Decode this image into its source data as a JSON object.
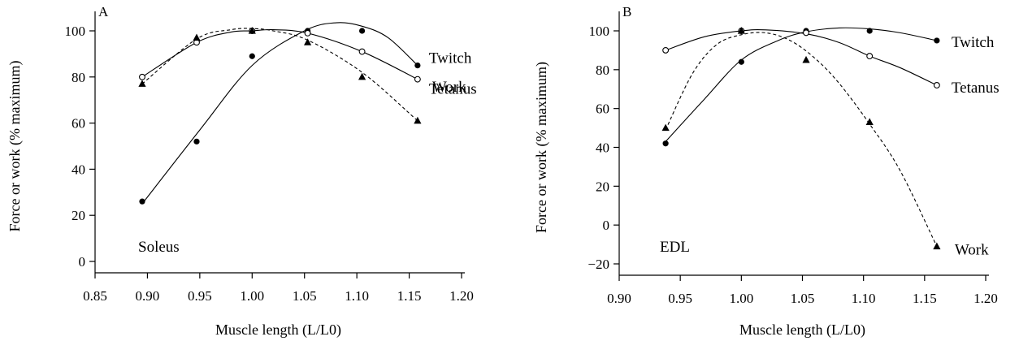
{
  "chart_data": [
    {
      "type": "line",
      "panel_label": "A",
      "muscle_label": "Soleus",
      "xlabel": "Muscle length (L/L0)",
      "ylabel": "Force or work (% maximum)",
      "xlim": [
        0.85,
        1.2
      ],
      "ylim": [
        0,
        100
      ],
      "xticks": [
        "0.85",
        "0.90",
        "0.95",
        "1.00",
        "1.05",
        "1.10",
        "1.15",
        "1.20"
      ],
      "yticks": [
        "0",
        "20",
        "40",
        "60",
        "80",
        "100"
      ],
      "grid": false,
      "series": [
        {
          "name": "Twitch",
          "marker": "filled-circle",
          "line": "solid",
          "x": [
            0.895,
            0.947,
            1.0,
            1.053,
            1.105,
            1.158
          ],
          "y": [
            26,
            52,
            89,
            100,
            100,
            85
          ],
          "fit": [
            [
              0.895,
              25
            ],
            [
              0.95,
              57
            ],
            [
              1.0,
              85
            ],
            [
              1.05,
              100
            ],
            [
              1.08,
              103.5
            ],
            [
              1.105,
              102
            ],
            [
              1.13,
              97
            ],
            [
              1.158,
              85
            ]
          ]
        },
        {
          "name": "Tetanus",
          "marker": "open-circle",
          "line": "solid",
          "x": [
            0.895,
            0.947,
            1.0,
            1.053,
            1.105,
            1.158
          ],
          "y": [
            80,
            95,
            100,
            99,
            91,
            79
          ],
          "fit": [
            [
              0.895,
              80
            ],
            [
              0.947,
              95
            ],
            [
              0.98,
              99.5
            ],
            [
              1.0,
              100
            ],
            [
              1.02,
              100.5
            ],
            [
              1.053,
              99
            ],
            [
              1.105,
              91
            ],
            [
              1.158,
              79
            ]
          ]
        },
        {
          "name": "Work",
          "marker": "filled-triangle",
          "line": "dashed",
          "x": [
            0.895,
            0.947,
            1.0,
            1.053,
            1.105,
            1.158
          ],
          "y": [
            77,
            97,
            100,
            95,
            80,
            61
          ],
          "fit": [
            [
              0.895,
              77
            ],
            [
              0.947,
              96.5
            ],
            [
              0.98,
              100.5
            ],
            [
              1.0,
              101
            ],
            [
              1.02,
              100
            ],
            [
              1.053,
              96
            ],
            [
              1.105,
              82
            ],
            [
              1.158,
              61
            ]
          ]
        }
      ],
      "label_positions": {
        "Twitch": "right",
        "Tetanus": "right",
        "Work": "right"
      }
    },
    {
      "type": "line",
      "panel_label": "B",
      "muscle_label": "EDL",
      "xlabel": "Muscle length (L/L0)",
      "ylabel": "Force or work (% maximum)",
      "xlim": [
        0.9,
        1.2
      ],
      "ylim": [
        -20,
        100
      ],
      "xticks": [
        "0.90",
        "0.95",
        "1.00",
        "1.05",
        "1.10",
        "1.15",
        "1.20"
      ],
      "yticks": [
        "−20",
        "0",
        "20",
        "40",
        "60",
        "80",
        "100"
      ],
      "grid": false,
      "series": [
        {
          "name": "Twitch",
          "marker": "filled-circle",
          "line": "solid",
          "x": [
            0.938,
            1.0,
            1.053,
            1.105,
            1.16
          ],
          "y": [
            42,
            84,
            100,
            100,
            95
          ],
          "fit": [
            [
              0.938,
              43
            ],
            [
              0.97,
              65
            ],
            [
              1.0,
              85
            ],
            [
              1.03,
              95
            ],
            [
              1.053,
              99.5
            ],
            [
              1.08,
              101.5
            ],
            [
              1.105,
              101
            ],
            [
              1.13,
              99
            ],
            [
              1.16,
              95
            ]
          ]
        },
        {
          "name": "Tetanus",
          "marker": "open-circle",
          "line": "solid",
          "x": [
            0.938,
            1.0,
            1.053,
            1.105,
            1.16
          ],
          "y": [
            90,
            100,
            99,
            87,
            72
          ],
          "fit": [
            [
              0.938,
              90
            ],
            [
              0.97,
              97
            ],
            [
              1.0,
              100
            ],
            [
              1.02,
              100.5
            ],
            [
              1.053,
              98.5
            ],
            [
              1.08,
              94
            ],
            [
              1.105,
              87
            ],
            [
              1.13,
              81
            ],
            [
              1.16,
              72
            ]
          ]
        },
        {
          "name": "Work",
          "marker": "filled-triangle",
          "line": "dashed",
          "x": [
            0.938,
            1.0,
            1.053,
            1.105,
            1.16
          ],
          "y": [
            50,
            100,
            85,
            53,
            -11
          ],
          "fit": [
            [
              0.938,
              49
            ],
            [
              0.96,
              78
            ],
            [
              0.98,
              93
            ],
            [
              1.0,
              98
            ],
            [
              1.02,
              99
            ],
            [
              1.04,
              95
            ],
            [
              1.06,
              86
            ],
            [
              1.08,
              73
            ],
            [
              1.105,
              52
            ],
            [
              1.13,
              28
            ],
            [
              1.16,
              -11
            ]
          ]
        }
      ],
      "label_positions": {
        "Twitch": "right",
        "Tetanus": "right",
        "Work": "right"
      }
    }
  ]
}
